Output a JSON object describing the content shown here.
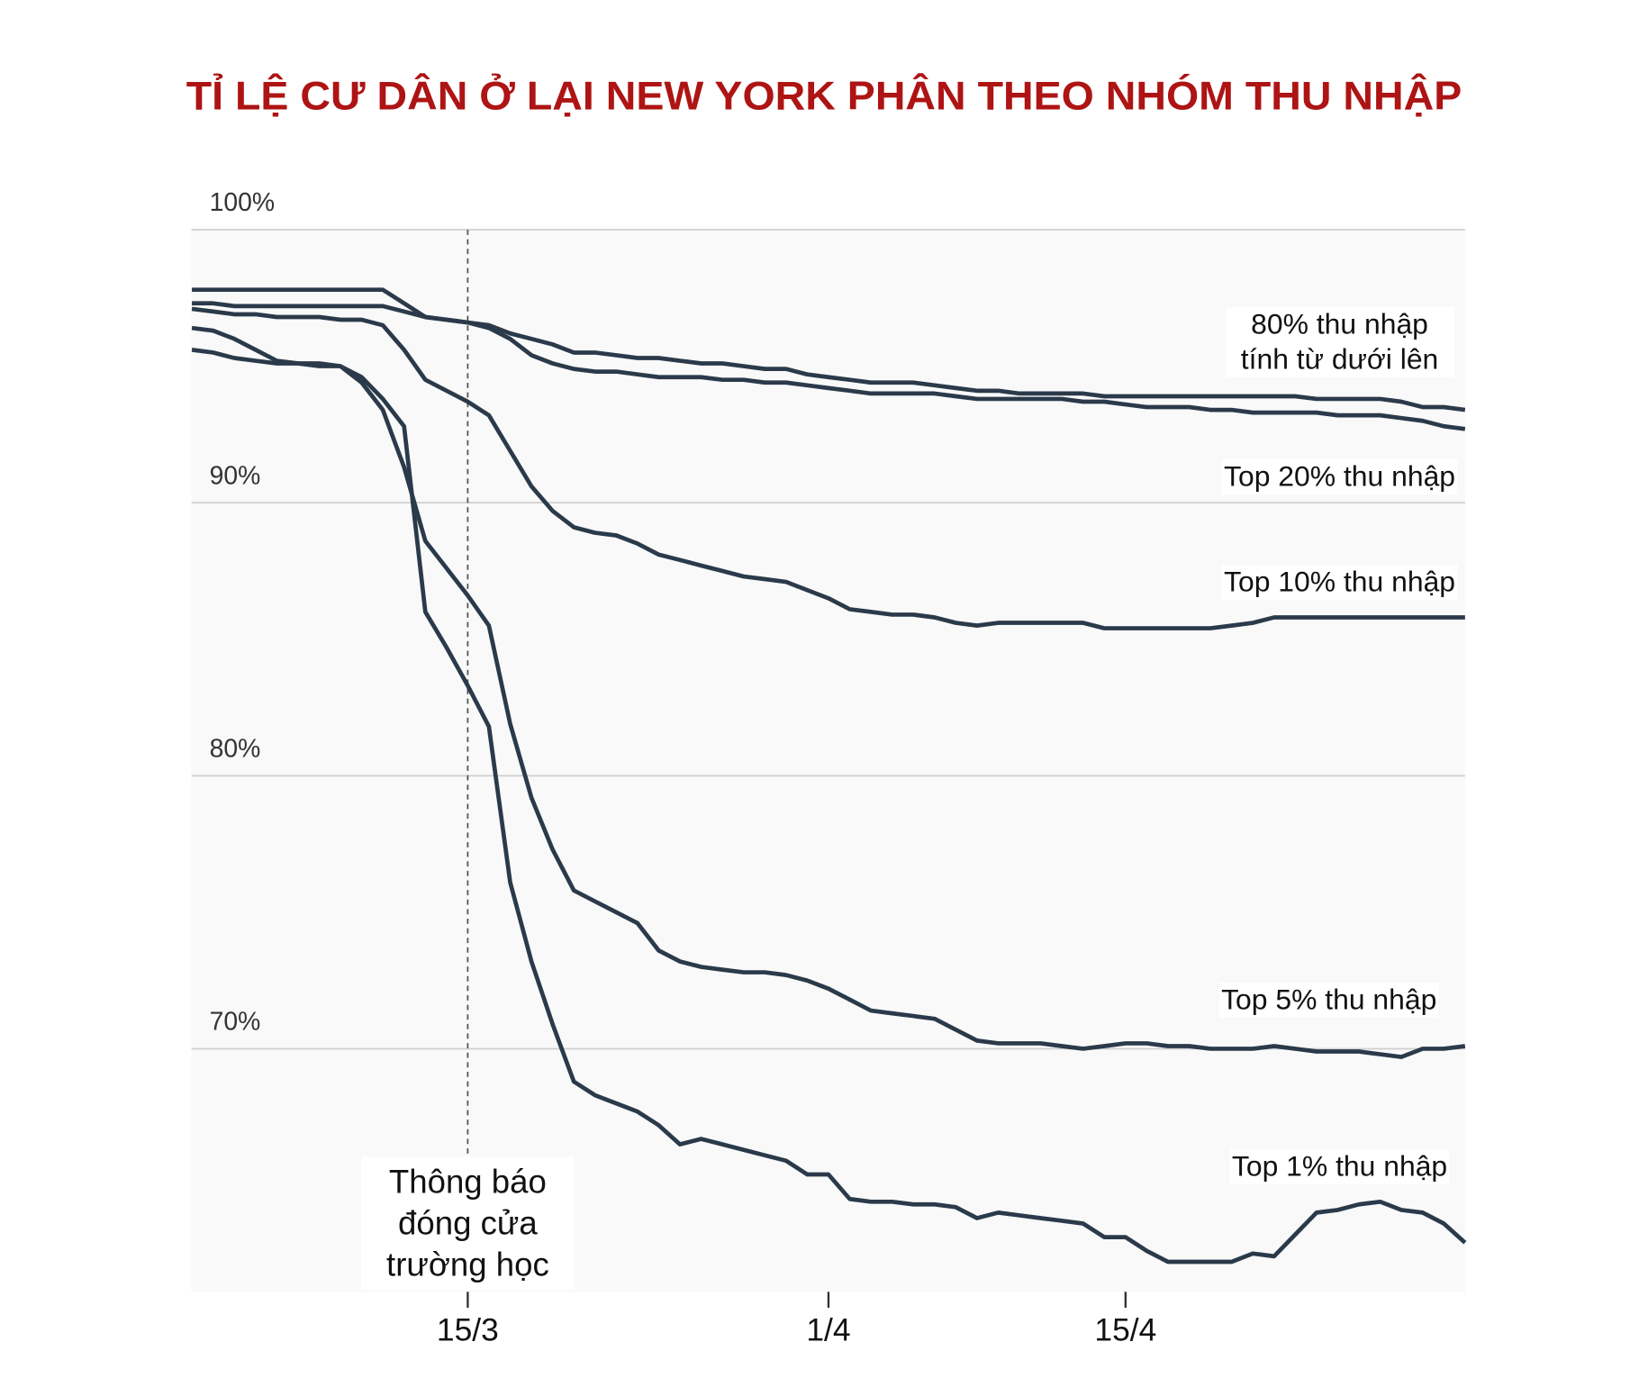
{
  "chart_data": {
    "type": "line",
    "title": "TỈ LỆ CƯ DÂN Ở LẠI NEW YORK PHÂN THEO NHÓM THU NHẬP",
    "annotation": "Thông báo đóng cửa trường học",
    "color": "#2b3a4a",
    "grid": true,
    "ylim": [
      61.1,
      100
    ],
    "yticks": [
      {
        "value": 70,
        "label": "70%"
      },
      {
        "value": 80,
        "label": "80%"
      },
      {
        "value": 90,
        "label": "90%"
      },
      {
        "value": 100,
        "label": "100%"
      }
    ],
    "categories": [
      null,
      null,
      null,
      null,
      null,
      null,
      null,
      null,
      null,
      null,
      null,
      null,
      null,
      "15/3",
      null,
      null,
      null,
      null,
      null,
      null,
      null,
      null,
      null,
      null,
      null,
      null,
      null,
      null,
      null,
      null,
      "1/4",
      null,
      null,
      null,
      null,
      null,
      null,
      null,
      null,
      null,
      null,
      null,
      null,
      null,
      "15/4",
      null,
      null,
      null,
      null,
      null,
      null,
      null,
      null,
      null,
      null,
      null,
      null,
      null,
      null,
      null,
      null
    ],
    "series": [
      {
        "name": "80% thu nhập tính từ dưới lên",
        "color": "#2b3a4a",
        "values": [
          97.8,
          97.8,
          97.8,
          97.8,
          97.8,
          97.8,
          97.8,
          97.8,
          97.8,
          97.8,
          97.3,
          96.8,
          96.7,
          96.6,
          96.5,
          96.2,
          96.0,
          95.8,
          95.5,
          95.5,
          95.4,
          95.3,
          95.3,
          95.2,
          95.1,
          95.1,
          95.0,
          94.9,
          94.9,
          94.7,
          94.6,
          94.5,
          94.4,
          94.4,
          94.4,
          94.3,
          94.2,
          94.1,
          94.1,
          94.0,
          94.0,
          94.0,
          94.0,
          93.9,
          93.9,
          93.9,
          93.9,
          93.9,
          93.9,
          93.9,
          93.9,
          93.9,
          93.9,
          93.8,
          93.8,
          93.8,
          93.8,
          93.7,
          93.5,
          93.5,
          93.4
        ]
      },
      {
        "name": "Top 20% thu nhập",
        "color": "#2b3a4a",
        "values": [
          97.3,
          97.3,
          97.2,
          97.2,
          97.2,
          97.2,
          97.2,
          97.2,
          97.2,
          97.2,
          97.0,
          96.8,
          96.7,
          96.6,
          96.4,
          96.0,
          95.4,
          95.1,
          94.9,
          94.8,
          94.8,
          94.7,
          94.6,
          94.6,
          94.6,
          94.5,
          94.5,
          94.4,
          94.4,
          94.3,
          94.2,
          94.1,
          94.0,
          94.0,
          94.0,
          94.0,
          93.9,
          93.8,
          93.8,
          93.8,
          93.8,
          93.8,
          93.7,
          93.7,
          93.6,
          93.5,
          93.5,
          93.5,
          93.4,
          93.4,
          93.3,
          93.3,
          93.3,
          93.3,
          93.2,
          93.2,
          93.2,
          93.1,
          93.0,
          92.8,
          92.7
        ]
      },
      {
        "name": "Top 10% thu nhập",
        "color": "#2b3a4a",
        "values": [
          97.1,
          97.0,
          96.9,
          96.9,
          96.8,
          96.8,
          96.8,
          96.7,
          96.7,
          96.5,
          95.6,
          94.5,
          94.1,
          93.7,
          93.2,
          91.9,
          90.6,
          89.7,
          89.1,
          88.9,
          88.8,
          88.5,
          88.1,
          87.9,
          87.7,
          87.5,
          87.3,
          87.2,
          87.1,
          86.8,
          86.5,
          86.1,
          86.0,
          85.9,
          85.9,
          85.8,
          85.6,
          85.5,
          85.6,
          85.6,
          85.6,
          85.6,
          85.6,
          85.4,
          85.4,
          85.4,
          85.4,
          85.4,
          85.4,
          85.5,
          85.6,
          85.8,
          85.8,
          85.8,
          85.8,
          85.8,
          85.8,
          85.8,
          85.8,
          85.8,
          85.8
        ]
      },
      {
        "name": "Top 5% thu nhập",
        "color": "#2b3a4a",
        "values": [
          96.4,
          96.3,
          96.0,
          95.6,
          95.2,
          95.1,
          95.1,
          95.0,
          94.4,
          93.4,
          91.3,
          88.6,
          87.6,
          86.6,
          85.5,
          81.9,
          79.2,
          77.3,
          75.8,
          75.4,
          75.0,
          74.6,
          73.6,
          73.2,
          73.0,
          72.9,
          72.8,
          72.8,
          72.7,
          72.5,
          72.2,
          71.8,
          71.4,
          71.3,
          71.2,
          71.1,
          70.7,
          70.3,
          70.2,
          70.2,
          70.2,
          70.1,
          70.0,
          70.1,
          70.2,
          70.2,
          70.1,
          70.1,
          70.0,
          70.0,
          70.0,
          70.1,
          70.0,
          69.9,
          69.9,
          69.9,
          69.8,
          69.7,
          70.0,
          70.0,
          70.1
        ]
      },
      {
        "name": "Top 1% thu nhập",
        "color": "#2b3a4a",
        "values": [
          95.6,
          95.5,
          95.3,
          95.2,
          95.1,
          95.1,
          95.0,
          95.0,
          94.6,
          93.8,
          92.8,
          86.0,
          84.7,
          83.3,
          81.8,
          76.1,
          73.2,
          70.9,
          68.8,
          68.3,
          68.0,
          67.7,
          67.2,
          66.5,
          66.7,
          66.5,
          66.3,
          66.1,
          65.9,
          65.4,
          65.4,
          64.5,
          64.4,
          64.4,
          64.3,
          64.3,
          64.2,
          63.8,
          64.0,
          63.9,
          63.8,
          63.7,
          63.6,
          63.1,
          63.1,
          62.6,
          62.2,
          62.2,
          62.2,
          62.2,
          62.5,
          62.4,
          63.2,
          64.0,
          64.1,
          64.3,
          64.4,
          64.1,
          64.0,
          63.6,
          62.9
        ]
      }
    ]
  }
}
